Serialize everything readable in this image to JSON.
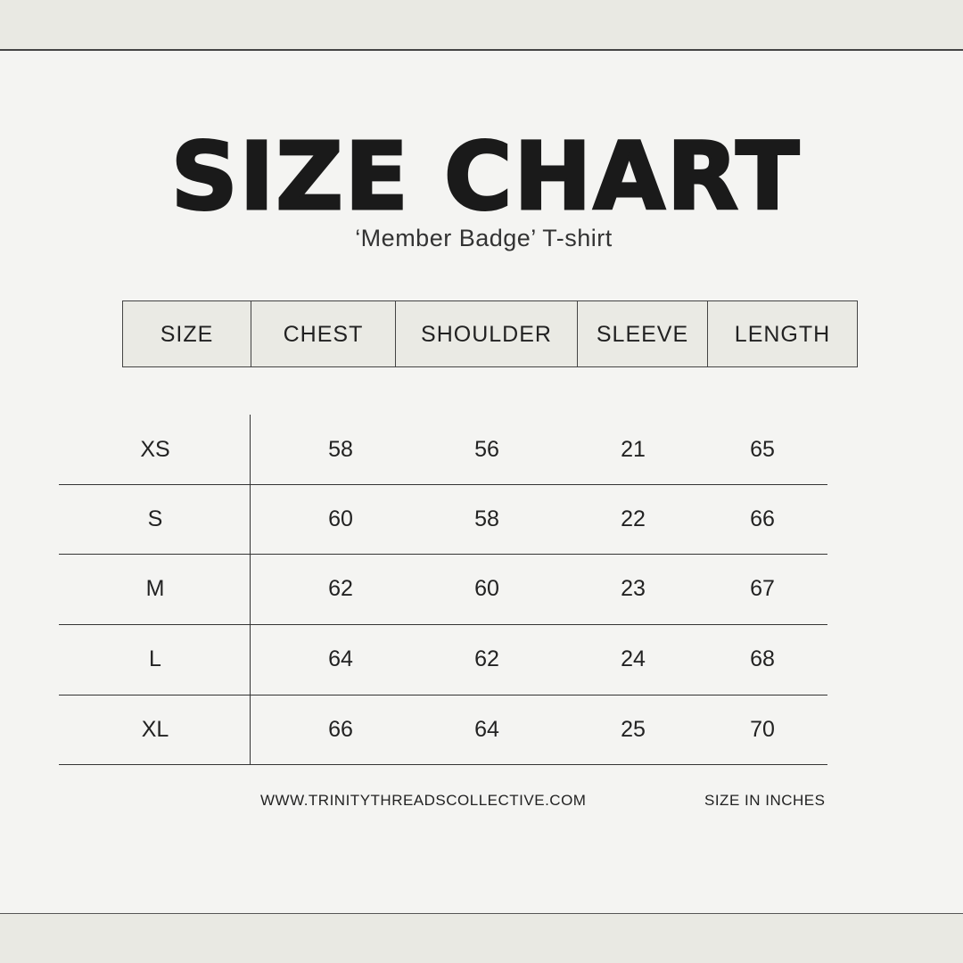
{
  "title": "SIZE CHART",
  "subtitle": "‘Member Badge’ T-shirt",
  "headers": [
    "SIZE",
    "CHEST",
    "SHOULDER",
    "SLEEVE",
    "LENGTH"
  ],
  "rows": [
    [
      "XS",
      "58",
      "56",
      "21",
      "65"
    ],
    [
      "S",
      "60",
      "58",
      "22",
      "66"
    ],
    [
      "M",
      "62",
      "60",
      "23",
      "67"
    ],
    [
      "L",
      "64",
      "62",
      "24",
      "68"
    ],
    [
      "XL",
      "66",
      "64",
      "25",
      "70"
    ]
  ],
  "footer": {
    "website": "WWW.TRINITYTHREADSCOLLECTIVE.COM",
    "unit_note": "SIZE IN INCHES"
  },
  "colors": {
    "background": "#f4f4f2",
    "band": "#e9e9e3",
    "header_fill": "#eaeae4",
    "text": "#1a1a1a"
  }
}
